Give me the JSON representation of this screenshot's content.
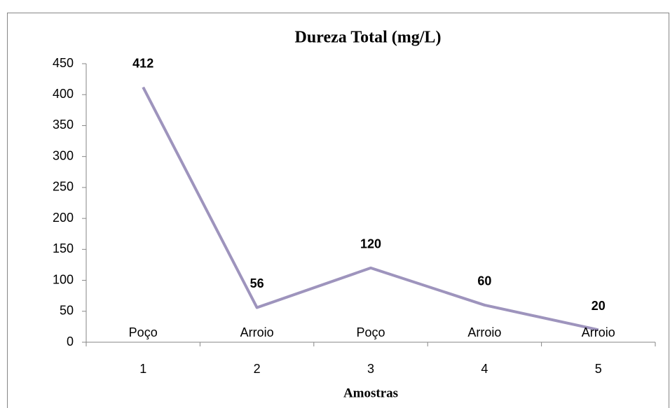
{
  "chart_data": {
    "type": "line",
    "title": "Dureza Total (mg/L)",
    "x_label": "Amostras",
    "categories": [
      "1",
      "2",
      "3",
      "4",
      "5"
    ],
    "point_labels": [
      "Poço",
      "Arroio",
      "Poço",
      "Arroio",
      "Arroio"
    ],
    "values": [
      412,
      56,
      120,
      60,
      20
    ],
    "color": "#9e94bd",
    "ylim": [
      0,
      450
    ],
    "yticks": [
      0,
      50,
      100,
      150,
      200,
      250,
      300,
      350,
      400,
      450
    ],
    "grid": false
  }
}
